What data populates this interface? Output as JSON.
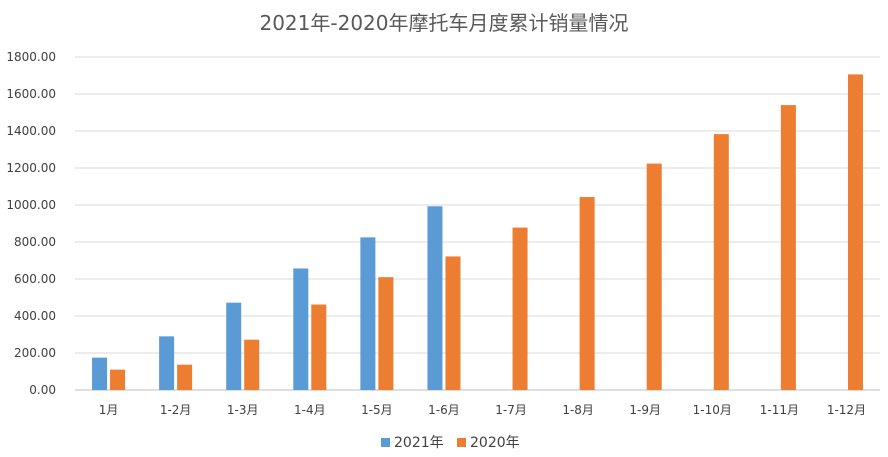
{
  "chart_data": {
    "type": "bar",
    "title": "2021年-2020年摩托车月度累计销量情况",
    "categories": [
      "1月",
      "1-2月",
      "1-3月",
      "1-4月",
      "1-5月",
      "1-6月",
      "1-7月",
      "1-8月",
      "1-9月",
      "1-10月",
      "1-11月",
      "1-12月"
    ],
    "series": [
      {
        "name": "2021年",
        "color": "#5b9bd5",
        "values": [
          175,
          290,
          472,
          657,
          825,
          993,
          null,
          null,
          null,
          null,
          null,
          null
        ]
      },
      {
        "name": "2020年",
        "color": "#ed7d31",
        "values": [
          110,
          137,
          272,
          462,
          610,
          722,
          878,
          1043,
          1224,
          1383,
          1540,
          1706
        ]
      }
    ],
    "ylim": [
      0,
      1800
    ],
    "yticks": [
      "0.00",
      "200.00",
      "400.00",
      "600.00",
      "800.00",
      "1000.00",
      "1200.00",
      "1400.00",
      "1600.00",
      "1800.00"
    ],
    "ytick_values": [
      0,
      200,
      400,
      600,
      800,
      1000,
      1200,
      1400,
      1600,
      1800
    ],
    "grid": true,
    "legend": "bottom"
  }
}
